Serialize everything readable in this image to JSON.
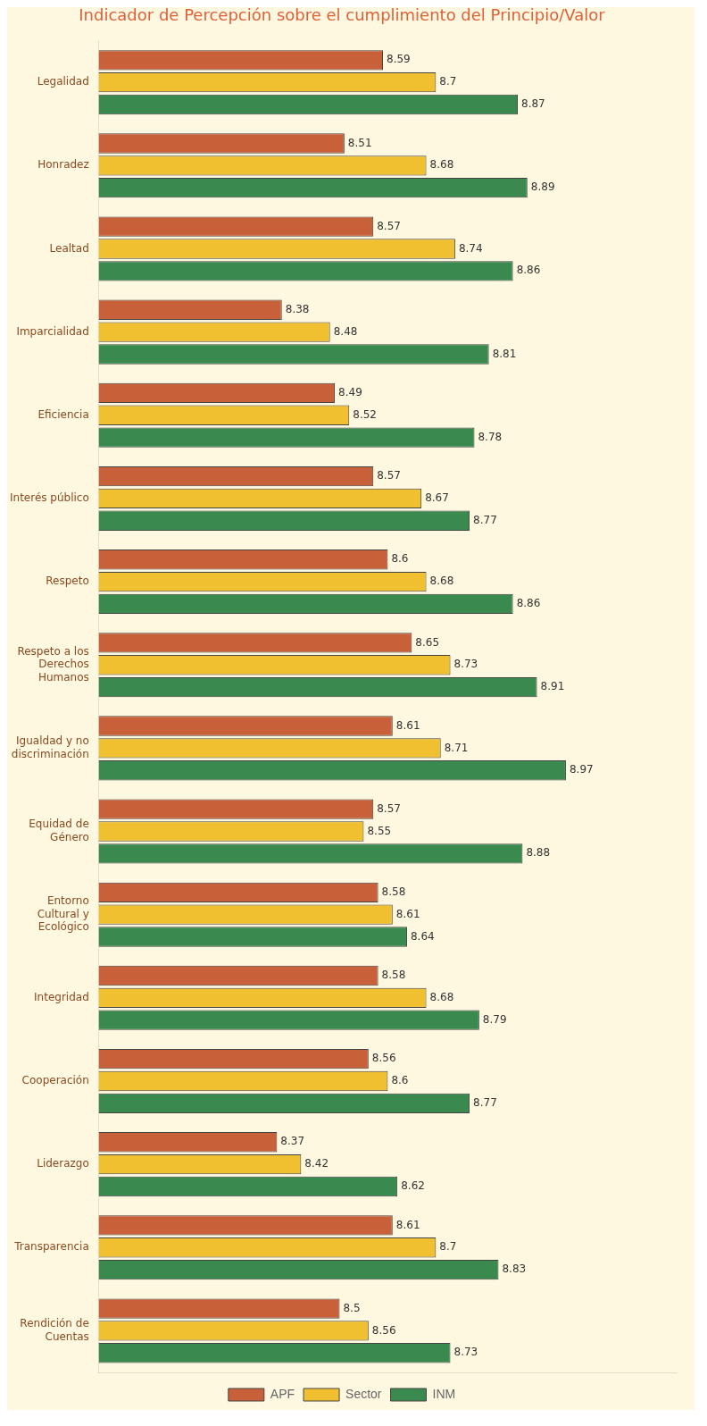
{
  "chart_data": {
    "type": "bar",
    "orientation": "horizontal",
    "title": "Indicador de Percepción sobre el cumplimiento del Principio/Valor",
    "categories": [
      "Legalidad",
      "Honradez",
      "Lealtad",
      "Imparcialidad",
      "Eficiencia",
      "Interés público",
      "Respeto",
      "Respeto a los Derechos Humanos",
      "Igualdad y no discriminación",
      "Equidad de Género",
      "Entorno Cultural y Ecológico",
      "Integridad",
      "Cooperación",
      "Liderazgo",
      "Transparencia",
      "Rendición de Cuentas"
    ],
    "series": [
      {
        "name": "APF",
        "color": "#c8603a",
        "values": [
          8.59,
          8.51,
          8.57,
          8.38,
          8.49,
          8.57,
          8.6,
          8.65,
          8.61,
          8.57,
          8.58,
          8.58,
          8.56,
          8.37,
          8.61,
          8.5
        ]
      },
      {
        "name": "Sector",
        "color": "#f0c030",
        "values": [
          8.7,
          8.68,
          8.74,
          8.48,
          8.52,
          8.67,
          8.68,
          8.73,
          8.71,
          8.55,
          8.61,
          8.68,
          8.6,
          8.42,
          8.7,
          8.56
        ]
      },
      {
        "name": "INM",
        "color": "#3a8a50",
        "values": [
          8.87,
          8.89,
          8.86,
          8.81,
          8.78,
          8.77,
          8.86,
          8.91,
          8.97,
          8.88,
          8.64,
          8.79,
          8.77,
          8.62,
          8.83,
          8.73
        ]
      }
    ],
    "xlim": [
      8,
      9.2
    ],
    "tick_labels": "y",
    "data_labels": true,
    "legend": "bottom",
    "grid": false
  }
}
